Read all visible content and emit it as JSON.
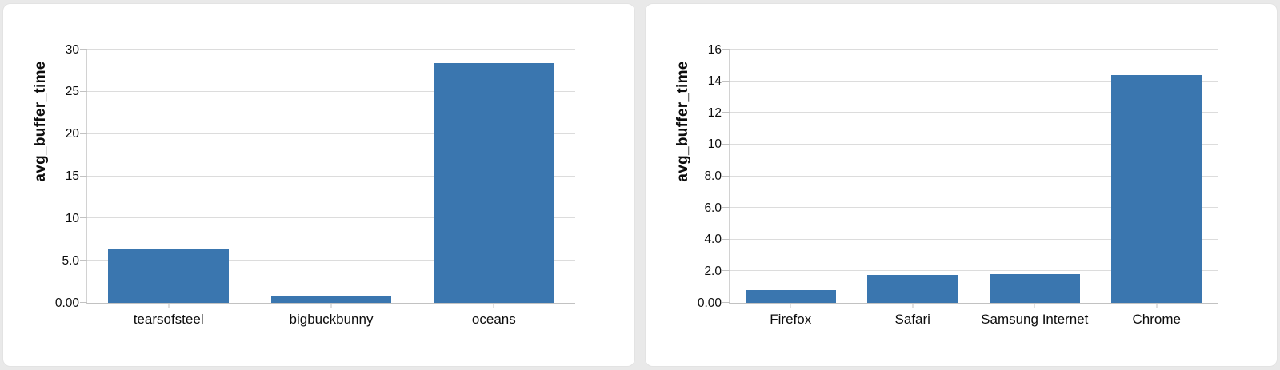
{
  "page": {
    "background": "#e9e9e9",
    "card_background": "#ffffff",
    "gridline_color": "#dcdcdc",
    "axis_color": "#c2c2c2",
    "text_color": "#0d0d0d"
  },
  "chart_data": [
    {
      "type": "bar",
      "title": "",
      "xlabel": "",
      "ylabel": "avg_buffer_time",
      "categories": [
        "tearsofsteel",
        "bigbuckbunny",
        "oceans"
      ],
      "values": [
        6.4,
        0.85,
        28.4
      ],
      "ylim": [
        0,
        30
      ],
      "yticks": [
        {
          "value": 0,
          "label": "0.00"
        },
        {
          "value": 5,
          "label": "5.0"
        },
        {
          "value": 10,
          "label": "10"
        },
        {
          "value": 15,
          "label": "15"
        },
        {
          "value": 20,
          "label": "20"
        },
        {
          "value": 25,
          "label": "25"
        },
        {
          "value": 30,
          "label": "30"
        }
      ],
      "grid": true,
      "legend": false,
      "bar_color": "#3a76af"
    },
    {
      "type": "bar",
      "title": "",
      "xlabel": "",
      "ylabel": "avg_buffer_time",
      "categories": [
        "Firefox",
        "Safari",
        "Samsung Internet",
        "Chrome"
      ],
      "values": [
        0.8,
        1.75,
        1.8,
        14.4
      ],
      "ylim": [
        0,
        16
      ],
      "yticks": [
        {
          "value": 0,
          "label": "0.00"
        },
        {
          "value": 2,
          "label": "2.0"
        },
        {
          "value": 4,
          "label": "4.0"
        },
        {
          "value": 6,
          "label": "6.0"
        },
        {
          "value": 8,
          "label": "8.0"
        },
        {
          "value": 10,
          "label": "10"
        },
        {
          "value": 12,
          "label": "12"
        },
        {
          "value": 14,
          "label": "14"
        },
        {
          "value": 16,
          "label": "16"
        }
      ],
      "grid": true,
      "legend": false,
      "bar_color": "#3a76af"
    }
  ]
}
